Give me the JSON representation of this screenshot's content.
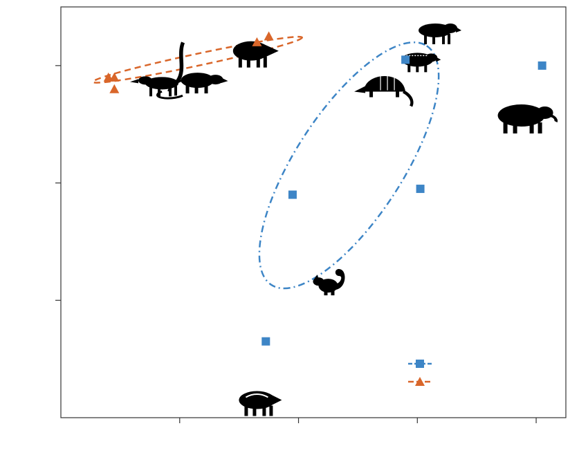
{
  "chart_data": {
    "type": "scatter",
    "title": "",
    "xlabel": "",
    "ylabel": "",
    "xlim": [
      0,
      8.5
    ],
    "ylim": [
      0,
      7
    ],
    "grid": false,
    "legend": {
      "position": "bottom-right",
      "entries": [
        {
          "series": 0,
          "marker": "square",
          "line": "dashdot",
          "color": "#3d85c6"
        },
        {
          "series": 1,
          "marker": "triangle",
          "line": "dashed",
          "color": "#d9662a"
        }
      ]
    },
    "series": [
      {
        "marker": "square",
        "color": "#3d85c6",
        "points": [
          {
            "x": 3.45,
            "y": 1.3
          },
          {
            "x": 3.9,
            "y": 3.8
          },
          {
            "x": 5.8,
            "y": 6.1
          },
          {
            "x": 6.05,
            "y": 3.9
          },
          {
            "x": 8.1,
            "y": 6.0
          }
        ],
        "ellipse": {
          "cx": 4.85,
          "cy": 4.3,
          "rx": 2.4,
          "ry": 0.9,
          "angle_deg": 57
        }
      },
      {
        "marker": "triangle",
        "color": "#d9662a",
        "points": [
          {
            "x": 0.8,
            "y": 5.8
          },
          {
            "x": 0.9,
            "y": 5.8
          },
          {
            "x": 0.9,
            "y": 5.6
          },
          {
            "x": 3.3,
            "y": 6.4
          },
          {
            "x": 3.5,
            "y": 6.5
          }
        ],
        "ellipse": {
          "cx": 2.3,
          "cy": 6.1,
          "rx": 1.8,
          "ry": 0.1,
          "angle_deg": 12
        }
      }
    ],
    "silhouettes": [
      {
        "icon": "coati",
        "x": 1.7,
        "y": 5.7
      },
      {
        "icon": "opossum",
        "x": 2.3,
        "y": 5.75
      },
      {
        "icon": "peccary",
        "x": 3.2,
        "y": 6.25
      },
      {
        "icon": "paca",
        "x": 6.3,
        "y": 6.6
      },
      {
        "icon": "agouti",
        "x": 6.0,
        "y": 6.1
      },
      {
        "icon": "armadillo",
        "x": 5.45,
        "y": 5.65
      },
      {
        "icon": "tapir",
        "x": 7.75,
        "y": 5.15
      },
      {
        "icon": "squirrel",
        "x": 4.5,
        "y": 2.25
      },
      {
        "icon": "peccary-juvenile",
        "x": 3.3,
        "y": 0.3
      }
    ]
  }
}
